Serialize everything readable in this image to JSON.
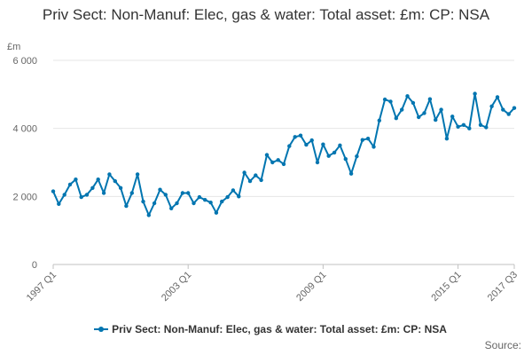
{
  "title": "Priv Sect: Non-Manuf: Elec, gas & water: Total asset: £m: CP: NSA",
  "unit_label": "£m",
  "source_label": "Source:",
  "colors": {
    "series": "#0075b0",
    "grid": "#e6e6e6",
    "axis": "#c0c0c0",
    "text": "#333333"
  },
  "chart_data": {
    "type": "line",
    "title": "Priv Sect: Non-Manuf: Elec, gas & water: Total asset: £m: CP: NSA",
    "ylabel": "£m",
    "xlabel": "",
    "ylim": [
      0,
      6000
    ],
    "yticks": [
      0,
      2000,
      4000,
      6000
    ],
    "ytick_labels": [
      "0",
      "2 000",
      "4 000",
      "6 000"
    ],
    "xtick_labels": [
      "1997 Q1",
      "2003 Q1",
      "2009 Q1",
      "2015 Q1",
      "2017 Q3"
    ],
    "xtick_indices": [
      0,
      24,
      48,
      72,
      82
    ],
    "grid": true,
    "legend": "bottom",
    "x": [
      "1997 Q1",
      "1997 Q2",
      "1997 Q3",
      "1997 Q4",
      "1998 Q1",
      "1998 Q2",
      "1998 Q3",
      "1998 Q4",
      "1999 Q1",
      "1999 Q2",
      "1999 Q3",
      "1999 Q4",
      "2000 Q1",
      "2000 Q2",
      "2000 Q3",
      "2000 Q4",
      "2001 Q1",
      "2001 Q2",
      "2001 Q3",
      "2001 Q4",
      "2002 Q1",
      "2002 Q2",
      "2002 Q3",
      "2002 Q4",
      "2003 Q1",
      "2003 Q2",
      "2003 Q3",
      "2003 Q4",
      "2004 Q1",
      "2004 Q2",
      "2004 Q3",
      "2004 Q4",
      "2005 Q1",
      "2005 Q2",
      "2005 Q3",
      "2005 Q4",
      "2006 Q1",
      "2006 Q2",
      "2006 Q3",
      "2006 Q4",
      "2007 Q1",
      "2007 Q2",
      "2007 Q3",
      "2007 Q4",
      "2008 Q1",
      "2008 Q2",
      "2008 Q3",
      "2008 Q4",
      "2009 Q1",
      "2009 Q2",
      "2009 Q3",
      "2009 Q4",
      "2010 Q1",
      "2010 Q2",
      "2010 Q3",
      "2010 Q4",
      "2011 Q1",
      "2011 Q2",
      "2011 Q3",
      "2011 Q4",
      "2012 Q1",
      "2012 Q2",
      "2012 Q3",
      "2012 Q4",
      "2013 Q1",
      "2013 Q2",
      "2013 Q3",
      "2013 Q4",
      "2014 Q1",
      "2014 Q2",
      "2014 Q3",
      "2014 Q4",
      "2015 Q1",
      "2015 Q2",
      "2015 Q3",
      "2015 Q4",
      "2016 Q1",
      "2016 Q2",
      "2016 Q3",
      "2016 Q4",
      "2017 Q1",
      "2017 Q2",
      "2017 Q3"
    ],
    "series": [
      {
        "name": "Priv Sect: Non-Manuf: Elec, gas & water: Total asset: £m: CP: NSA",
        "values": [
          2150,
          1780,
          2050,
          2350,
          2500,
          1980,
          2050,
          2250,
          2500,
          2100,
          2650,
          2450,
          2250,
          1720,
          2100,
          2650,
          1850,
          1450,
          1800,
          2200,
          2050,
          1650,
          1800,
          2100,
          2100,
          1800,
          1980,
          1900,
          1820,
          1520,
          1850,
          1980,
          2180,
          2000,
          2700,
          2450,
          2620,
          2480,
          3220,
          3000,
          3070,
          2950,
          3480,
          3750,
          3790,
          3520,
          3650,
          3000,
          3530,
          3190,
          3290,
          3500,
          3100,
          2670,
          3180,
          3660,
          3700,
          3460,
          4230,
          4850,
          4790,
          4300,
          4550,
          4950,
          4750,
          4330,
          4450,
          4860,
          4250,
          4550,
          3700,
          4350,
          4050,
          4100,
          4000,
          5020,
          4100,
          4030,
          4650,
          4920,
          4550,
          4420,
          4600
        ]
      }
    ]
  }
}
